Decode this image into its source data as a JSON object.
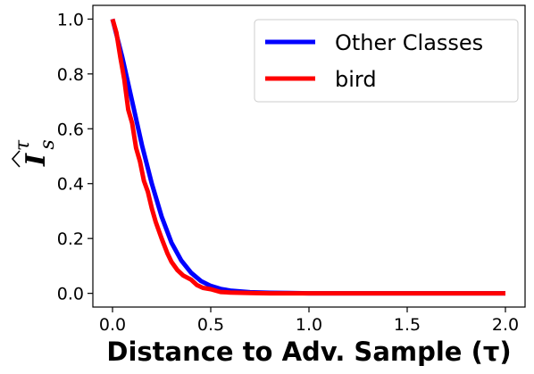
{
  "chart_data": {
    "type": "line",
    "title": "",
    "xlabel": "Distance to Adv. Sample (τ)",
    "ylabel": {
      "main": "I",
      "superscript": "τ",
      "subscript": "s"
    },
    "xlim": [
      -0.1,
      2.1
    ],
    "ylim": [
      -0.05,
      1.05
    ],
    "xticks": [
      0.0,
      0.5,
      1.0,
      1.5,
      2.0
    ],
    "xtick_labels": [
      "0.0",
      "0.5",
      "1.0",
      "1.5",
      "2.0"
    ],
    "yticks": [
      0.0,
      0.2,
      0.4,
      0.6,
      0.8,
      1.0
    ],
    "ytick_labels": [
      "0.0",
      "0.2",
      "0.4",
      "0.6",
      "0.8",
      "1.0"
    ],
    "grid": false,
    "legend_position": "top-right",
    "series": [
      {
        "name": "Other Classes",
        "color": "#0000ff",
        "x": [
          0.0,
          0.05,
          0.1,
          0.15,
          0.2,
          0.25,
          0.3,
          0.35,
          0.4,
          0.45,
          0.5,
          0.55,
          0.6,
          0.7,
          0.8,
          0.9,
          1.0,
          1.25,
          1.5,
          1.75,
          2.0
        ],
        "y": [
          1.0,
          0.86,
          0.7,
          0.54,
          0.4,
          0.28,
          0.185,
          0.12,
          0.075,
          0.045,
          0.027,
          0.016,
          0.01,
          0.004,
          0.002,
          0.001,
          0.0,
          0.0,
          0.0,
          0.0,
          0.0
        ]
      },
      {
        "name": "bird",
        "color": "#ff0000",
        "x": [
          0.0,
          0.02,
          0.04,
          0.06,
          0.08,
          0.1,
          0.12,
          0.14,
          0.16,
          0.18,
          0.2,
          0.22,
          0.25,
          0.28,
          0.3,
          0.33,
          0.36,
          0.4,
          0.43,
          0.46,
          0.5,
          0.55,
          0.6,
          0.7,
          0.8,
          1.0,
          1.5,
          2.0
        ],
        "y": [
          1.0,
          0.95,
          0.86,
          0.78,
          0.67,
          0.62,
          0.53,
          0.48,
          0.41,
          0.37,
          0.31,
          0.26,
          0.2,
          0.145,
          0.115,
          0.085,
          0.065,
          0.05,
          0.03,
          0.02,
          0.015,
          0.005,
          0.003,
          0.001,
          0.0,
          0.0,
          0.0,
          0.0
        ]
      }
    ]
  }
}
